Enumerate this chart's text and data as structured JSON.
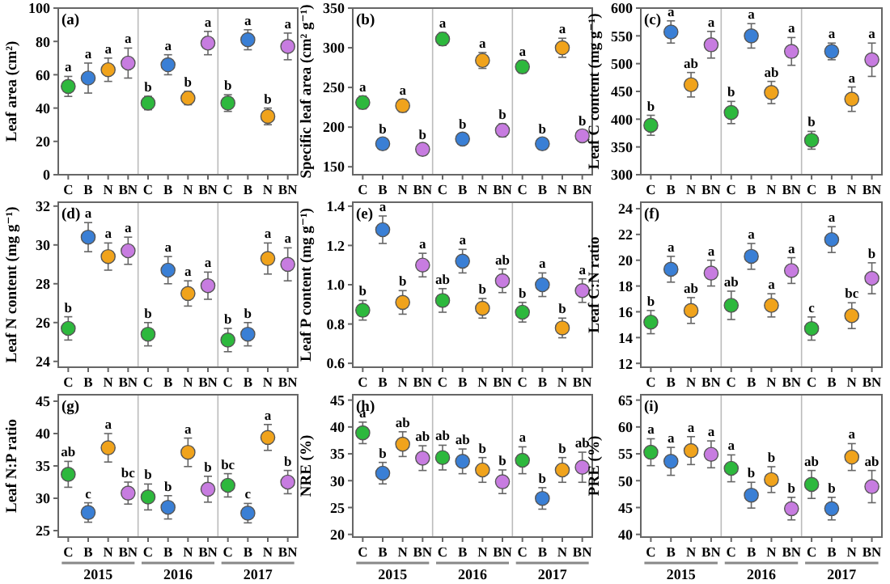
{
  "chart_data": [
    {
      "type": "scatter",
      "title": "(a)",
      "ylabel": "Leaf area (cm²)",
      "categories": [
        "C",
        "B",
        "N",
        "BN",
        "C",
        "B",
        "N",
        "BN",
        "C",
        "B",
        "N",
        "BN"
      ],
      "ylim": [
        0,
        100
      ],
      "yticks": [
        0,
        20,
        40,
        60,
        80,
        100
      ],
      "marker": "circle",
      "series": [
        {
          "values": [
            53,
            58,
            63,
            67,
            43,
            66,
            46,
            79,
            43,
            81,
            35,
            77
          ],
          "errors": [
            6,
            9,
            7,
            9,
            4,
            6,
            4,
            7,
            5,
            6,
            5,
            8
          ],
          "value_labels": [
            "a",
            "a",
            "a",
            "a",
            "b",
            "a",
            "b",
            "a",
            "b",
            "a",
            "b",
            "a"
          ],
          "colors": [
            "#2db83d",
            "#3a7fd5",
            "#f0a31c",
            "#c77ce0",
            "#2db83d",
            "#3a7fd5",
            "#f0a31c",
            "#c77ce0",
            "#2db83d",
            "#3a7fd5",
            "#f0a31c",
            "#c77ce0"
          ]
        }
      ]
    },
    {
      "type": "scatter",
      "title": "(b)",
      "ylabel": "Specific leaf area (cm² g⁻¹)",
      "categories": [
        "C",
        "B",
        "N",
        "BN",
        "C",
        "B",
        "N",
        "BN",
        "C",
        "B",
        "N",
        "BN"
      ],
      "ylim": [
        140,
        350
      ],
      "yticks": [
        150,
        200,
        250,
        300,
        350
      ],
      "marker": "circle",
      "series": [
        {
          "values": [
            231,
            179,
            227,
            172,
            311,
            185,
            284,
            196,
            276,
            179,
            300,
            189
          ],
          "errors": [
            8,
            7,
            8,
            7,
            8,
            7,
            10,
            8,
            8,
            7,
            12,
            7
          ],
          "value_labels": [
            "a",
            "b",
            "a",
            "b",
            "a",
            "b",
            "a",
            "b",
            "a",
            "b",
            "a",
            "b"
          ],
          "colors": [
            "#2db83d",
            "#3a7fd5",
            "#f0a31c",
            "#c77ce0",
            "#2db83d",
            "#3a7fd5",
            "#f0a31c",
            "#c77ce0",
            "#2db83d",
            "#3a7fd5",
            "#f0a31c",
            "#c77ce0"
          ]
        }
      ]
    },
    {
      "type": "scatter",
      "title": "(c)",
      "ylabel": "Leaf C content (mg g⁻¹)",
      "categories": [
        "C",
        "B",
        "N",
        "BN",
        "C",
        "B",
        "N",
        "BN",
        "C",
        "B",
        "N",
        "BN"
      ],
      "ylim": [
        300,
        600
      ],
      "yticks": [
        300,
        350,
        400,
        450,
        500,
        550,
        600
      ],
      "marker": "circle",
      "series": [
        {
          "values": [
            389,
            557,
            462,
            534,
            412,
            550,
            448,
            522,
            362,
            522,
            436,
            507
          ],
          "errors": [
            18,
            20,
            22,
            24,
            20,
            22,
            20,
            25,
            16,
            15,
            22,
            30
          ],
          "value_labels": [
            "b",
            "a",
            "ab",
            "a",
            "b",
            "a",
            "ab",
            "a",
            "b",
            "a",
            "a",
            "a"
          ],
          "colors": [
            "#2db83d",
            "#3a7fd5",
            "#f0a31c",
            "#c77ce0",
            "#2db83d",
            "#3a7fd5",
            "#f0a31c",
            "#c77ce0",
            "#2db83d",
            "#3a7fd5",
            "#f0a31c",
            "#c77ce0"
          ]
        }
      ]
    },
    {
      "type": "scatter",
      "title": "(d)",
      "ylabel": "Leaf N content (mg g⁻¹)",
      "categories": [
        "C",
        "B",
        "N",
        "BN",
        "C",
        "B",
        "N",
        "BN",
        "C",
        "B",
        "N",
        "BN"
      ],
      "ylim": [
        23.7,
        32.2
      ],
      "yticks": [
        24,
        26,
        28,
        30,
        32
      ],
      "marker": "circle",
      "series": [
        {
          "values": [
            25.7,
            30.4,
            29.4,
            29.7,
            25.4,
            28.7,
            27.5,
            27.9,
            25.1,
            25.4,
            29.3,
            29.0
          ],
          "errors": [
            0.6,
            0.75,
            0.7,
            0.7,
            0.6,
            0.7,
            0.65,
            0.7,
            0.6,
            0.6,
            0.8,
            0.85
          ],
          "value_labels": [
            "b",
            "a",
            "a",
            "a",
            "b",
            "a",
            "a",
            "a",
            "b",
            "b",
            "a",
            "a"
          ],
          "colors": [
            "#2db83d",
            "#3a7fd5",
            "#f0a31c",
            "#c77ce0",
            "#2db83d",
            "#3a7fd5",
            "#f0a31c",
            "#c77ce0",
            "#2db83d",
            "#3a7fd5",
            "#f0a31c",
            "#c77ce0"
          ]
        }
      ]
    },
    {
      "type": "scatter",
      "title": "(e)",
      "ylabel": "Leaf P content (mg g⁻¹)",
      "categories": [
        "C",
        "B",
        "N",
        "BN",
        "C",
        "B",
        "N",
        "BN",
        "C",
        "B",
        "N",
        "BN"
      ],
      "ylim": [
        0.58,
        1.42
      ],
      "yticks": [
        0.6,
        0.8,
        {
          "value": 1,
          "label": "1.0"
        },
        1.2,
        1.4
      ],
      "marker": "circle",
      "series": [
        {
          "values": [
            0.87,
            1.28,
            0.91,
            1.1,
            0.92,
            1.12,
            0.88,
            1.02,
            0.86,
            1.0,
            0.78,
            0.97
          ],
          "errors": [
            0.05,
            0.07,
            0.06,
            0.06,
            0.06,
            0.06,
            0.05,
            0.06,
            0.05,
            0.06,
            0.05,
            0.06
          ],
          "value_labels": [
            "b",
            "a",
            "b",
            "a",
            "ab",
            "a",
            "b",
            "ab",
            "b",
            "a",
            "b",
            "a"
          ],
          "colors": [
            "#2db83d",
            "#3a7fd5",
            "#f0a31c",
            "#c77ce0",
            "#2db83d",
            "#3a7fd5",
            "#f0a31c",
            "#c77ce0",
            "#2db83d",
            "#3a7fd5",
            "#f0a31c",
            "#c77ce0"
          ]
        }
      ]
    },
    {
      "type": "scatter",
      "title": "(f)",
      "ylabel": "Leaf C:N ratio",
      "categories": [
        "C",
        "B",
        "N",
        "BN",
        "C",
        "B",
        "N",
        "BN",
        "C",
        "B",
        "N",
        "BN"
      ],
      "ylim": [
        11.7,
        24.5
      ],
      "yticks": [
        12,
        14,
        16,
        18,
        20,
        22,
        24
      ],
      "marker": "circle",
      "series": [
        {
          "values": [
            15.2,
            19.3,
            16.1,
            19.0,
            16.5,
            20.3,
            16.5,
            19.2,
            14.7,
            21.6,
            15.7,
            18.6
          ],
          "errors": [
            0.9,
            1.0,
            1.0,
            1.0,
            1.1,
            1.0,
            0.9,
            1.0,
            0.9,
            1.0,
            1.0,
            1.2
          ],
          "value_labels": [
            "b",
            "a",
            "ab",
            "a",
            "ab",
            "a",
            "a",
            "a",
            "c",
            "a",
            "bc",
            "b"
          ],
          "colors": [
            "#2db83d",
            "#3a7fd5",
            "#f0a31c",
            "#c77ce0",
            "#2db83d",
            "#3a7fd5",
            "#f0a31c",
            "#c77ce0",
            "#2db83d",
            "#3a7fd5",
            "#f0a31c",
            "#c77ce0"
          ]
        }
      ]
    },
    {
      "type": "scatter",
      "title": "(g)",
      "ylabel": "Leaf N:P ratio",
      "categories": [
        "C",
        "B",
        "N",
        "BN",
        "C",
        "B",
        "N",
        "BN",
        "C",
        "B",
        "N",
        "BN"
      ],
      "ylim": [
        24,
        46
      ],
      "yticks": [
        25,
        30,
        35,
        40,
        45
      ],
      "marker": "circle",
      "annotations": [
        "2015",
        "2016",
        "2017"
      ],
      "series": [
        {
          "values": [
            33.7,
            27.8,
            37.8,
            30.8,
            30.2,
            28.6,
            37.1,
            31.4,
            32.0,
            27.7,
            39.4,
            32.5
          ],
          "errors": [
            2,
            1.5,
            2.2,
            1.7,
            2,
            1.8,
            2.2,
            2,
            1.8,
            1.5,
            2,
            1.8
          ],
          "value_labels": [
            "ab",
            "c",
            "a",
            "bc",
            "b",
            "b",
            "a",
            "b",
            "bc",
            "c",
            "a",
            "b"
          ],
          "colors": [
            "#2db83d",
            "#3a7fd5",
            "#f0a31c",
            "#c77ce0",
            "#2db83d",
            "#3a7fd5",
            "#f0a31c",
            "#c77ce0",
            "#2db83d",
            "#3a7fd5",
            "#f0a31c",
            "#c77ce0"
          ]
        }
      ]
    },
    {
      "type": "scatter",
      "title": "(h)",
      "ylabel": "NRE (%)",
      "categories": [
        "C",
        "B",
        "N",
        "BN",
        "C",
        "B",
        "N",
        "BN",
        "C",
        "B",
        "N",
        "BN"
      ],
      "ylim": [
        19.5,
        46
      ],
      "yticks": [
        20,
        25,
        30,
        35,
        40,
        45
      ],
      "marker": "circle",
      "annotations": [
        "2015",
        "2016",
        "2017"
      ],
      "series": [
        {
          "values": [
            38.9,
            31.4,
            36.8,
            34.2,
            34.3,
            33.6,
            32.0,
            29.8,
            33.8,
            26.7,
            32.0,
            32.5
          ],
          "errors": [
            2,
            2,
            2.3,
            2.3,
            2.3,
            2.3,
            2.3,
            2.2,
            2.5,
            2,
            2.3,
            2.8
          ],
          "value_labels": [
            "a",
            "b",
            "ab",
            "ab",
            "ab",
            "ab",
            "b",
            "b",
            "a",
            "b",
            "b",
            "ab"
          ],
          "colors": [
            "#2db83d",
            "#3a7fd5",
            "#f0a31c",
            "#c77ce0",
            "#2db83d",
            "#3a7fd5",
            "#f0a31c",
            "#c77ce0",
            "#2db83d",
            "#3a7fd5",
            "#f0a31c",
            "#c77ce0"
          ]
        }
      ]
    },
    {
      "type": "scatter",
      "title": "(i)",
      "ylabel": "PRE (%)",
      "categories": [
        "C",
        "B",
        "N",
        "BN",
        "C",
        "B",
        "N",
        "BN",
        "C",
        "B",
        "N",
        "BN"
      ],
      "ylim": [
        39.5,
        66
      ],
      "yticks": [
        40,
        45,
        50,
        55,
        60,
        65
      ],
      "marker": "circle",
      "annotations": [
        "2015",
        "2016",
        "2017"
      ],
      "series": [
        {
          "values": [
            55.3,
            53.6,
            55.6,
            54.9,
            52.3,
            47.3,
            50.2,
            44.8,
            49.3,
            44.8,
            54.4,
            48.9
          ],
          "errors": [
            2.5,
            2.6,
            2.6,
            2.5,
            2.5,
            2.4,
            2.4,
            2.1,
            2.6,
            2.1,
            2.5,
            3
          ],
          "value_labels": [
            "a",
            "a",
            "a",
            "a",
            "a",
            "b",
            "b",
            "b",
            "ab",
            "b",
            "a",
            "ab"
          ],
          "colors": [
            "#2db83d",
            "#3a7fd5",
            "#f0a31c",
            "#c77ce0",
            "#2db83d",
            "#3a7fd5",
            "#f0a31c",
            "#c77ce0",
            "#2db83d",
            "#3a7fd5",
            "#f0a31c",
            "#c77ce0"
          ]
        }
      ]
    }
  ]
}
